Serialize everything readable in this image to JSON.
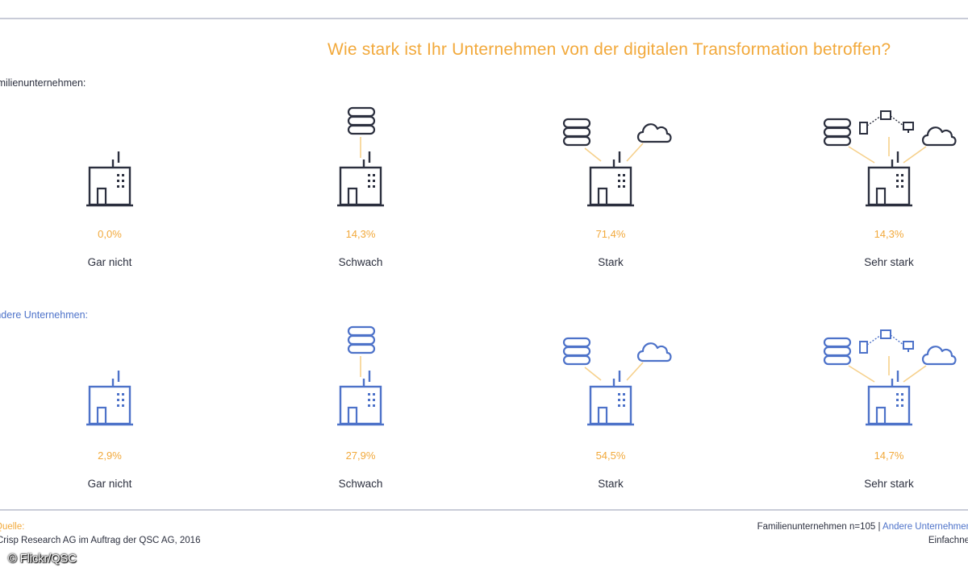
{
  "title": "Wie stark ist Ihr Unternehmen von der digitalen Transformation betroffen?",
  "colors": {
    "accent": "#f2a93b",
    "family": "#2b2f3e",
    "other": "#4d72c9",
    "rule": "#c9ccd8"
  },
  "chart_data": {
    "type": "bar",
    "title": "Wie stark ist Ihr Unternehmen von der digitalen Transformation betroffen?",
    "categories": [
      "Gar nicht",
      "Schwach",
      "Stark",
      "Sehr stark"
    ],
    "unit": "%",
    "series": [
      {
        "name": "Familienunternehmen:",
        "values": [
          0.0,
          14.3,
          71.4,
          14.3
        ],
        "value_labels": [
          "0,0%",
          "14,3%",
          "71,4%",
          "14,3%"
        ],
        "color": "#2b2f3e"
      },
      {
        "name": "Andere Unternehmen:",
        "values": [
          2.9,
          27.9,
          54.5,
          14.7
        ],
        "value_labels": [
          "2,9%",
          "27,9%",
          "54,5%",
          "14,7%"
        ],
        "color": "#4d72c9"
      }
    ]
  },
  "icons": {
    "building": "factory-building-icon",
    "database": "database-stack-icon",
    "cloud": "cloud-icon",
    "devices": "connected-devices-icon"
  },
  "footer": {
    "source_label": "Quelle:",
    "source_text": "Crisp Research AG im Auftrag der QSC AG, 2016",
    "n_family": "Familienunternehmen n=105 |",
    "n_other": "Andere Unternehmen",
    "n_line2": "Einfachne"
  },
  "credit": "© Flickr/QSC"
}
